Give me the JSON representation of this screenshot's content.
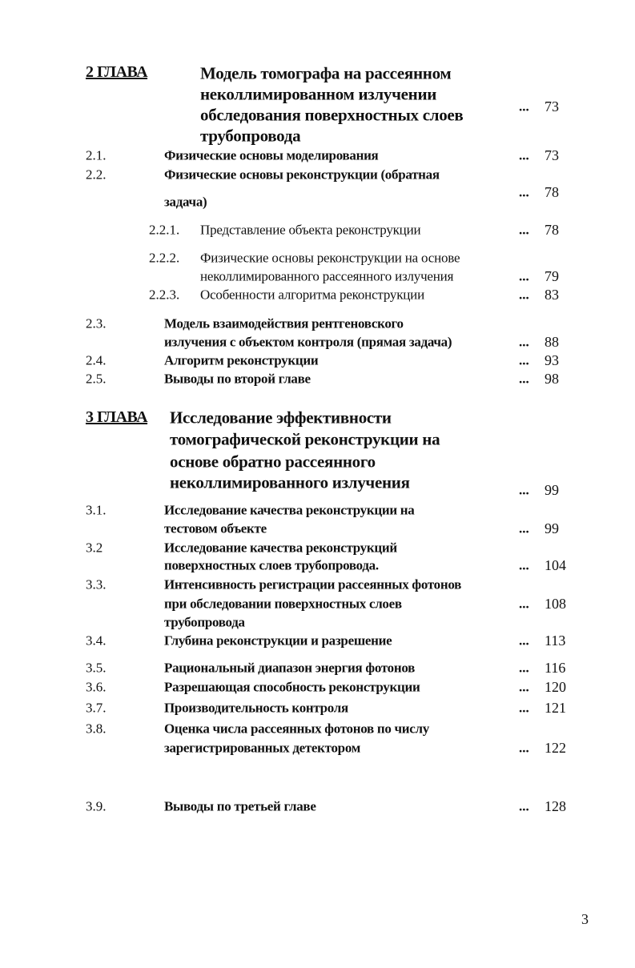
{
  "chapters": [
    {
      "label": "2 ГЛАВА",
      "title_lines": [
        "Модель томографа на рассеянном",
        "неколлимированном излучении",
        "обследования поверхностных слоев",
        "трубопровода"
      ],
      "dots": "...",
      "page": "73"
    },
    {
      "label": "3 ГЛАВА",
      "title_lines": [
        "Исследование эффективности",
        "томографической реконструкции на",
        "основе обратно рассеянного",
        "неколлимированного излучения"
      ],
      "dots": "...",
      "page": "99"
    }
  ],
  "entries": [
    {
      "number": "2.1.",
      "lines": [
        "Физические основы моделирования"
      ],
      "dots": "...",
      "page": "73"
    },
    {
      "number": "2.2.",
      "lines": [
        "Физические основы реконструкции (обратная",
        "задача)"
      ],
      "dots": "...",
      "page": "78"
    },
    {
      "number": "2.2.1.",
      "lines": [
        "Представление объекта реконструкции"
      ],
      "dots": "...",
      "page": "78"
    },
    {
      "number": "2.2.2.",
      "lines": [
        "Физические основы реконструкции на основе",
        "неколлимированного рассеянного излучения"
      ],
      "dots": "...",
      "page": "79"
    },
    {
      "number": "2.2.3.",
      "lines": [
        "Особенности алгоритма реконструкции"
      ],
      "dots": "...",
      "page": "83"
    },
    {
      "number": "2.3.",
      "lines": [
        "Модель взаимодействия рентгеновского",
        "излучения с объектом контроля (прямая задача)"
      ],
      "dots": "...",
      "page": "88"
    },
    {
      "number": "2.4.",
      "lines": [
        "Алгоритм  реконструкции"
      ],
      "dots": "...",
      "page": "93"
    },
    {
      "number": "2.5.",
      "lines": [
        "Выводы по второй главе"
      ],
      "dots": "...",
      "page": "98"
    },
    {
      "number": "3.1.",
      "lines": [
        "Исследование качества реконструкции на",
        "тестовом объекте"
      ],
      "dots": "...",
      "page": "99"
    },
    {
      "number": "3.2",
      "lines": [
        "Исследование качества реконструкций",
        "поверхностных слоев трубопровода."
      ],
      "dots": "...",
      "page": "104"
    },
    {
      "number": "3.3.",
      "lines": [
        "Интенсивность регистрации рассеянных фотонов",
        "при обследовании поверхностных слоев",
        "трубопровода"
      ],
      "dots": "...",
      "page": "108"
    },
    {
      "number": "3.4.",
      "lines": [
        "Глубина реконструкции и разрешение"
      ],
      "dots": "...",
      "page": "113"
    },
    {
      "number": "3.5.",
      "lines": [
        "Рациональный диапазон энергия фотонов"
      ],
      "dots": "...",
      "page": "116"
    },
    {
      "number": "3.6.",
      "lines": [
        "Разрешающая способность реконструкции"
      ],
      "dots": "...",
      "page": "120"
    },
    {
      "number": "3.7.",
      "lines": [
        "Производительность контроля"
      ],
      "dots": "...",
      "page": "121"
    },
    {
      "number": "3.8.",
      "lines": [
        "Оценка числа рассеянных фотонов по числу",
        "зарегистрированных детектором"
      ],
      "dots": "...",
      "page": "122"
    },
    {
      "number": "3.9.",
      "lines": [
        "Выводы по третьей главе"
      ],
      "dots": "...",
      "page": "128"
    }
  ],
  "page_number": "3"
}
